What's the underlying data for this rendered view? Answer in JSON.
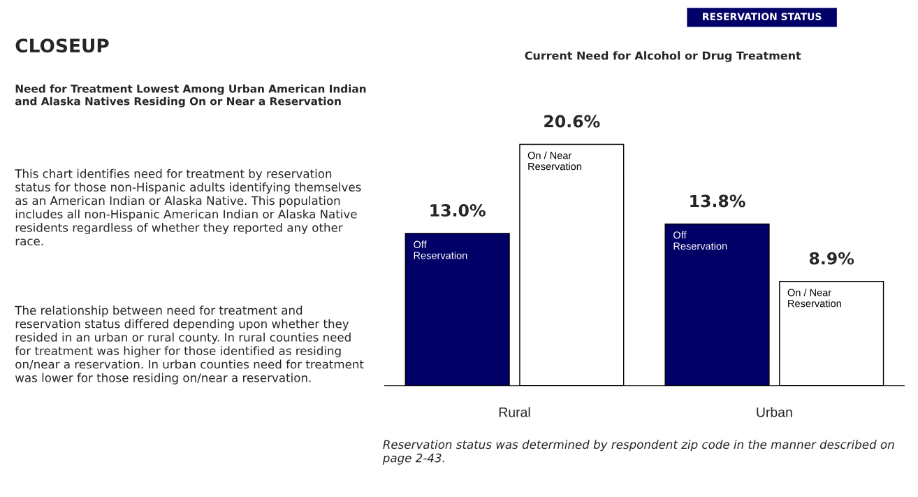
{
  "chart_data": {
    "type": "bar",
    "title": "Current Need for Alcohol or Drug Treatment",
    "categories": [
      "Rural",
      "Urban"
    ],
    "series": [
      {
        "name": "Off Reservation",
        "color": "#000066",
        "values": [
          13.0,
          13.8
        ],
        "value_labels": [
          "13.0%",
          "13.8%"
        ]
      },
      {
        "name": "On / Near Reservation",
        "color": "#ffffff",
        "values": [
          20.6,
          8.9
        ],
        "value_labels": [
          "20.6%",
          "8.9%"
        ]
      }
    ],
    "legend": false,
    "annotations": [
      "RESERVATION STATUS",
      "CLOSEUP",
      "Need for Treatment Lowest Among Urban American Indian and Alaska Natives Residing On or Near a Reservation",
      "This chart identifies need for treatment by reservation status for those non-Hispanic adults identifying themselves as an American Indian or Alaska Native. This population includes all non-Hispanic American Indian or Alaska Native residents regardless of whether they reported any other race.",
      "The relationship between need for treatment and reservation status differed depending upon whether they resided in an urban or rural county. In rural counties need for treatment was higher for those identified as residing on/near a reservation. In urban counties need for treatment was lower for those residing on/near a reservation.",
      "Reservation status was determined by respondent zip code in the manner described on page 2-43."
    ]
  }
}
